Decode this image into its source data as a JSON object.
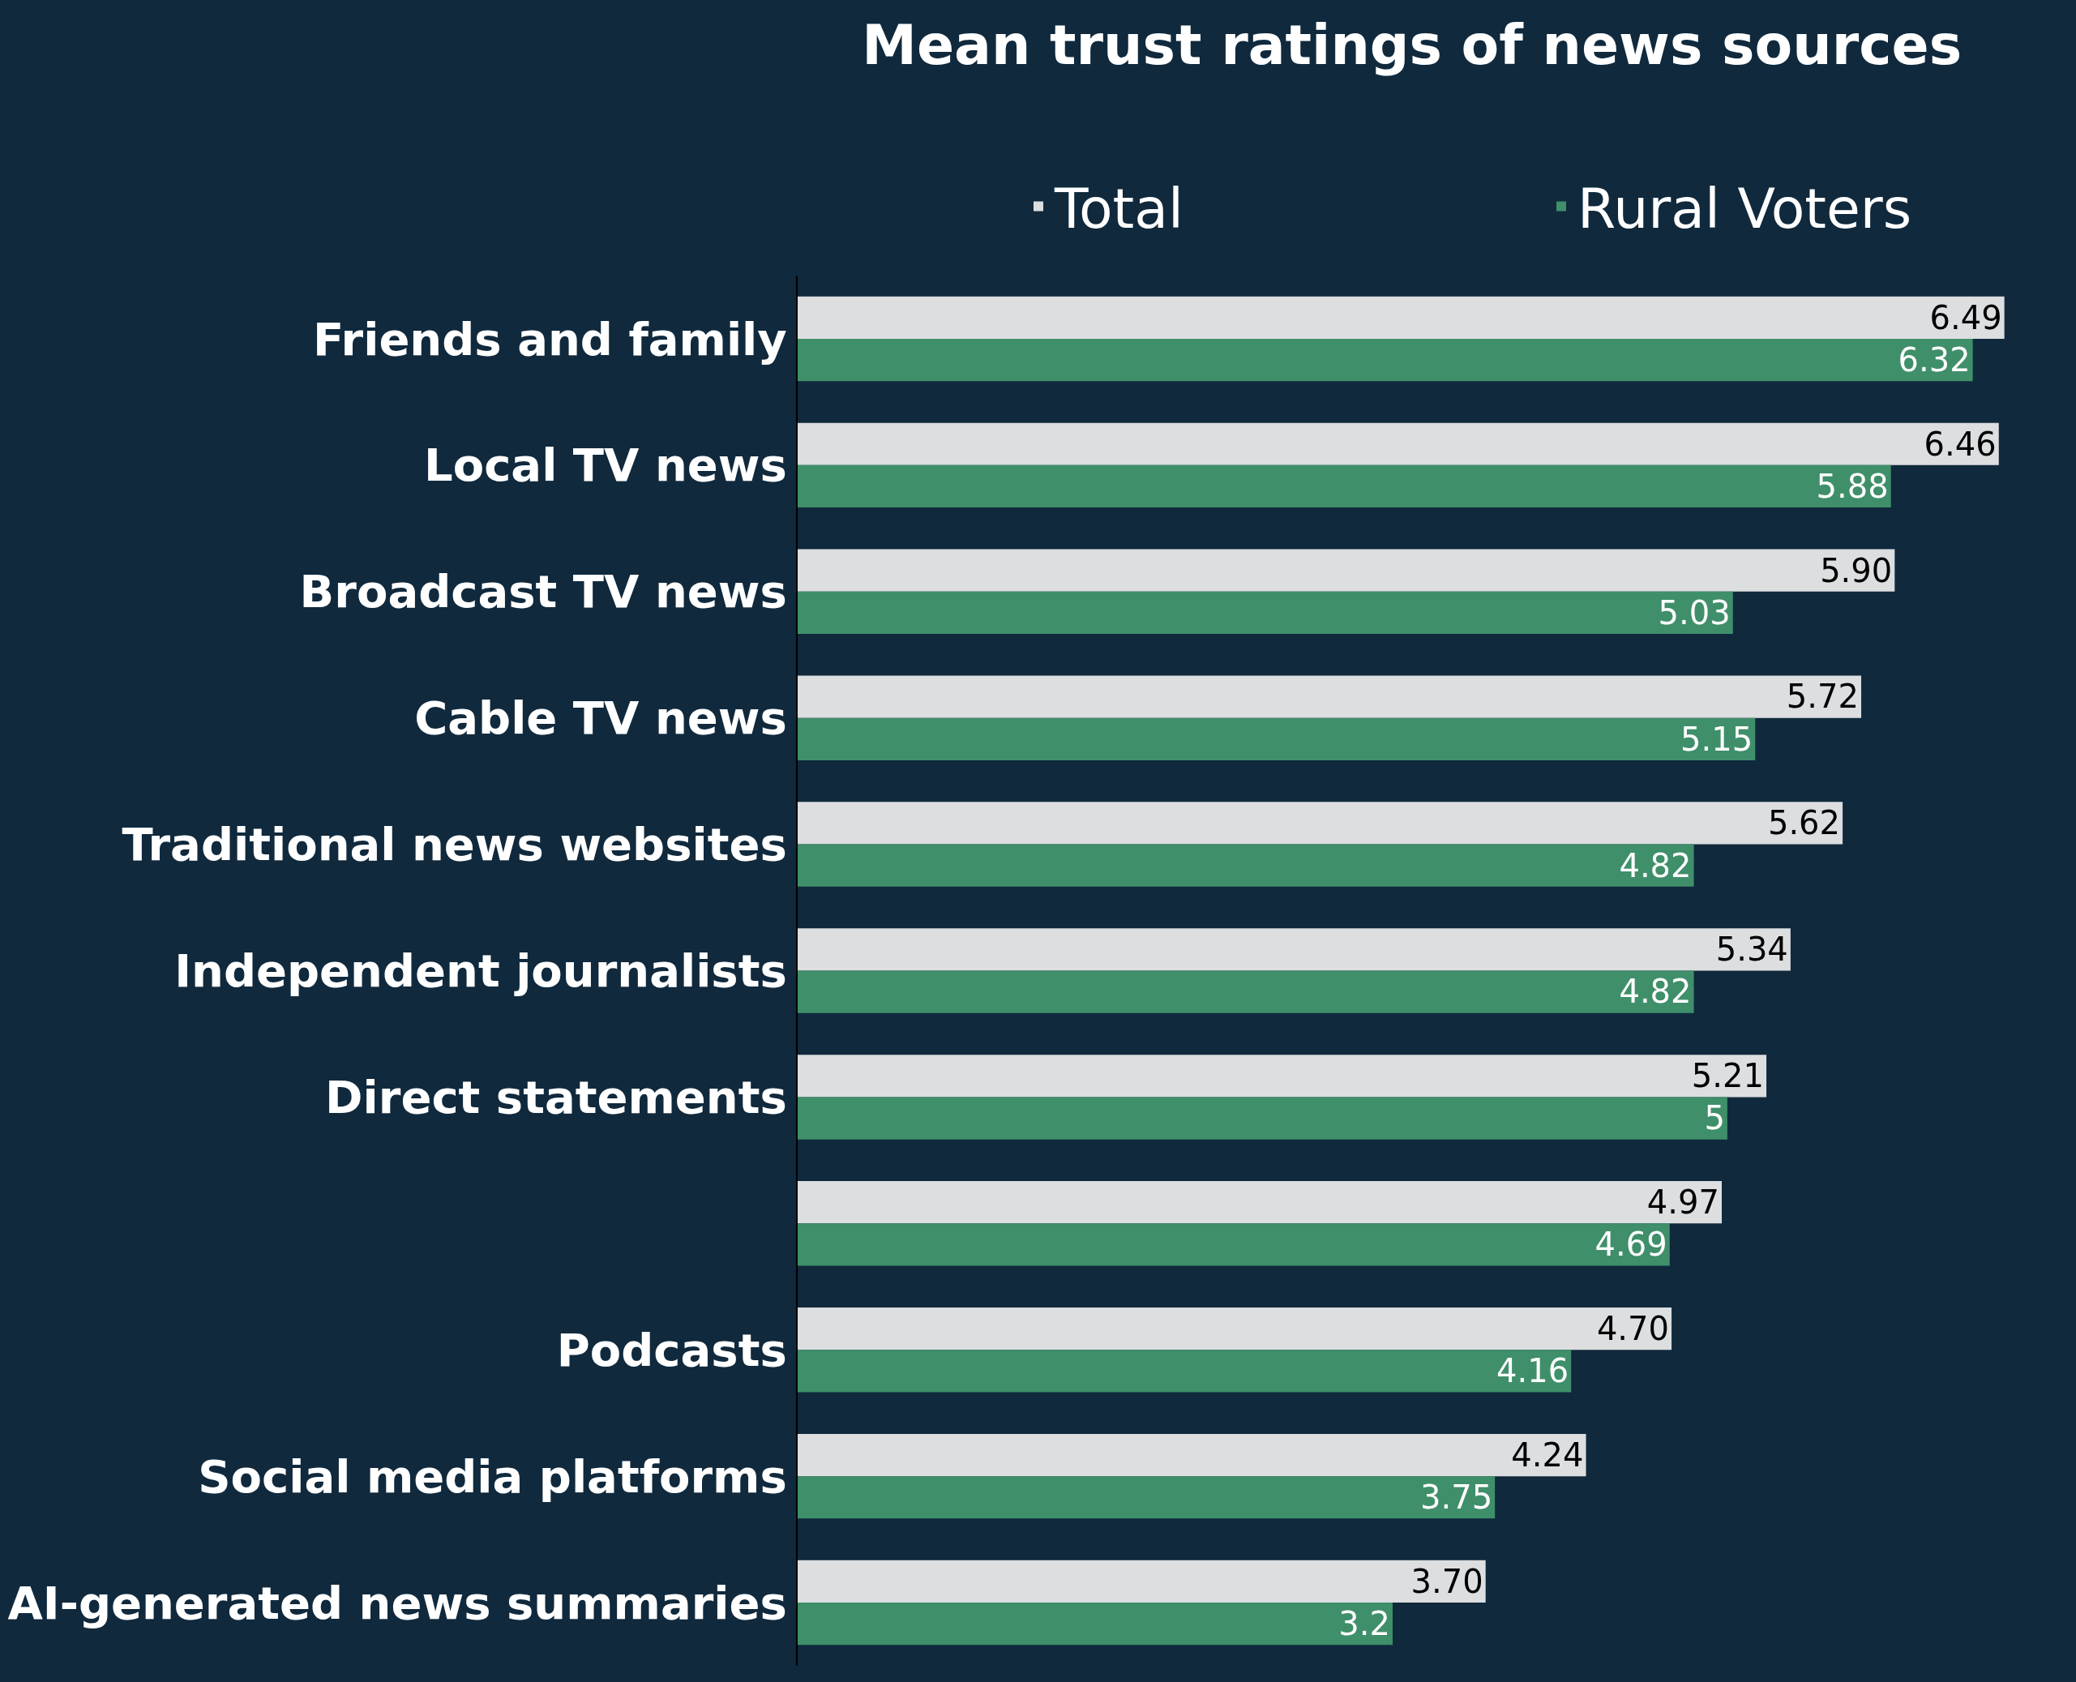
{
  "chart_data": {
    "type": "bar",
    "orientation": "horizontal",
    "title": "Mean trust ratings of news sources",
    "categories": [
      "Friends and family",
      "Local TV news",
      "Broadcast TV news",
      "Cable TV news",
      "Traditional news websites",
      "Independent journalists",
      "Direct statements",
      null,
      "Podcasts",
      "Social media platforms",
      "AI-generated news summaries"
    ],
    "series": [
      {
        "name": "Total",
        "color": "#dcdee0",
        "values": [
          6.49,
          6.46,
          5.9,
          5.72,
          5.62,
          5.34,
          5.21,
          4.97,
          4.7,
          4.24,
          3.7
        ],
        "value_labels": [
          "6.49",
          "6.46",
          "5.90",
          "5.72",
          "5.62",
          "5.34",
          "5.21",
          "4.97",
          "4.70",
          "4.24",
          "3.70"
        ]
      },
      {
        "name": "Rural Voters",
        "color": "#3f8f6a",
        "values": [
          6.32,
          5.88,
          5.03,
          5.15,
          4.82,
          4.82,
          5,
          4.69,
          4.16,
          3.75,
          3.2
        ],
        "value_labels": [
          "6.32",
          "5.88",
          "5.03",
          "5.15",
          "4.82",
          "4.82",
          "5",
          "4.69",
          "4.16",
          "3.75",
          "3.2"
        ]
      }
    ],
    "legend": "top right",
    "grid": false
  }
}
